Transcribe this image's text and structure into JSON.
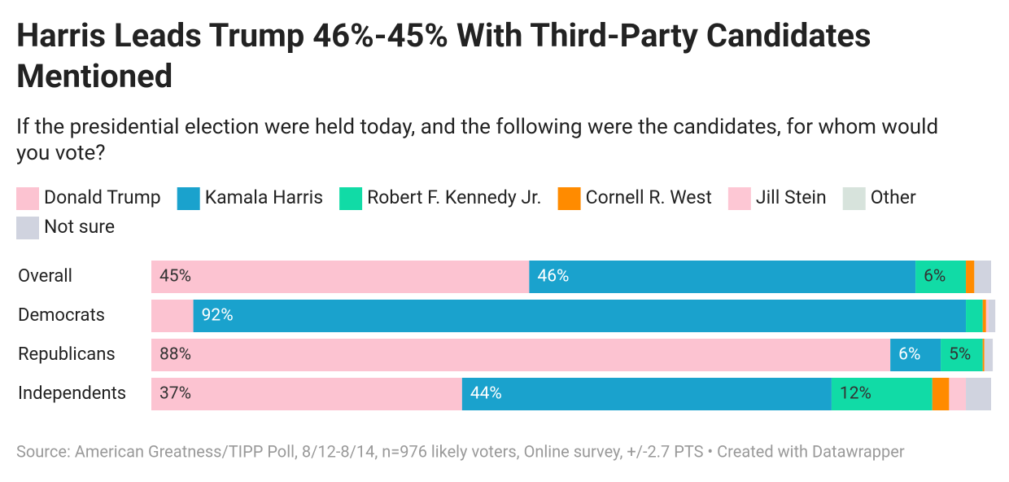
{
  "chart_data": {
    "type": "stacked-bar-horizontal",
    "title": "Harris Leads Trump 46%-45% With Third-Party Candidates Mentioned",
    "subtitle": "If the presidential election were held today, and the following were the candidates, for whom would you vote?",
    "source": "Source: American Greatness/TIPP Poll, 8/12-8/14, n=976 likely voters, Online survey, +/-2.7 PTS • Created with Datawrapper",
    "categories": [
      "Overall",
      "Democrats",
      "Republicans",
      "Independents"
    ],
    "xlim": [
      0,
      100
    ],
    "series": [
      {
        "name": "Donald Trump",
        "color": "#fcc3d1",
        "values": [
          45,
          5,
          88,
          37
        ],
        "value_labels": [
          "45%",
          null,
          "88%",
          "37%"
        ]
      },
      {
        "name": "Kamala Harris",
        "color": "#1aa2cd",
        "values": [
          46,
          92,
          6,
          44
        ],
        "value_labels": [
          "46%",
          "92%",
          "6%",
          "44%"
        ]
      },
      {
        "name": "Robert F. Kennedy Jr.",
        "color": "#11dba6",
        "values": [
          6,
          2,
          5,
          12
        ],
        "value_labels": [
          "6%",
          null,
          "5%",
          "12%"
        ]
      },
      {
        "name": "Cornell R. West",
        "color": "#ff8b00",
        "values": [
          1,
          0.4,
          0.2,
          2
        ],
        "value_labels": [
          null,
          null,
          null,
          null
        ]
      },
      {
        "name": "Jill Stein",
        "color": "#fdc7d4",
        "values": [
          0,
          0.3,
          0,
          2
        ],
        "value_labels": [
          null,
          null,
          null,
          null
        ]
      },
      {
        "name": "Other",
        "color": "#d7e3dc",
        "values": [
          0,
          0,
          0,
          0
        ],
        "value_labels": [
          null,
          null,
          null,
          null
        ]
      },
      {
        "name": "Not sure",
        "color": "#d0d3df",
        "values": [
          2,
          0.8,
          1,
          3
        ],
        "value_labels": [
          null,
          null,
          null,
          null
        ]
      }
    ]
  }
}
